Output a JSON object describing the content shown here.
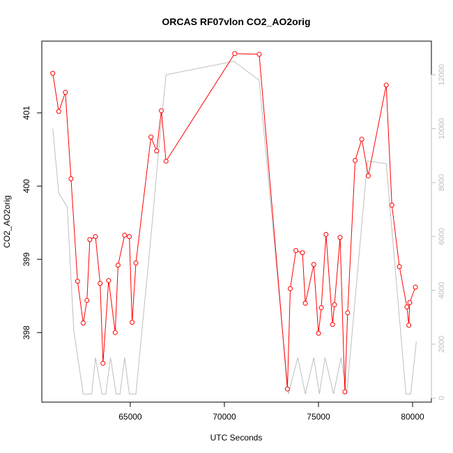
{
  "chart_data": {
    "type": "line",
    "title": "ORCAS RF07vlon CO2_AO2orig",
    "xlabel": "UTC Seconds",
    "ylabel": "CO2_AO2orig",
    "xlim": [
      60300,
      81000
    ],
    "ylim": [
      397.05,
      401.98
    ],
    "y2lim": [
      -150,
      13250
    ],
    "x_ticks": [
      65000,
      70000,
      75000,
      80000
    ],
    "y_ticks": [
      398,
      399,
      400,
      401
    ],
    "y2_ticks": [
      0,
      2000,
      4000,
      6000,
      8000,
      10000,
      12000
    ],
    "grid": false,
    "colors": {
      "primary": "#ff0000",
      "secondary": "#bebebe"
    },
    "series": [
      {
        "role": "primary",
        "axis": "left",
        "marker": "open-circle",
        "x": [
          60880,
          61200,
          61550,
          61850,
          62200,
          62500,
          62700,
          62850,
          63150,
          63400,
          63550,
          63850,
          64200,
          64350,
          64700,
          64950,
          65100,
          65300,
          66100,
          66400,
          66650,
          66900,
          70550,
          71850,
          73350,
          73500,
          73800,
          74150,
          74300,
          74750,
          75000,
          75150,
          75400,
          75750,
          75850,
          76150,
          76400,
          76550,
          76950,
          77300,
          77650,
          78600,
          78900,
          79300,
          79700,
          79800,
          79850,
          80150
        ],
        "y": [
          401.54,
          401.02,
          401.28,
          400.1,
          398.7,
          398.13,
          398.44,
          399.27,
          399.31,
          398.67,
          397.58,
          398.71,
          398.0,
          398.92,
          399.33,
          399.31,
          398.14,
          398.95,
          400.67,
          400.48,
          401.03,
          400.34,
          401.81,
          401.8,
          397.23,
          398.6,
          399.12,
          399.09,
          398.4,
          398.93,
          397.99,
          398.34,
          399.34,
          398.11,
          398.38,
          399.3,
          397.19,
          398.27,
          400.35,
          400.64,
          400.14,
          401.38,
          399.74,
          398.9,
          398.35,
          398.1,
          398.41,
          398.62
        ]
      },
      {
        "role": "secondary",
        "axis": "right",
        "marker": "none",
        "x": [
          60880,
          61200,
          61650,
          62000,
          62500,
          62950,
          63150,
          63500,
          63700,
          63950,
          64250,
          64450,
          64700,
          64950,
          65300,
          66100,
          66550,
          66900,
          70500,
          71850,
          73400,
          73900,
          74300,
          74750,
          75050,
          75350,
          75800,
          76200,
          76500,
          77600,
          78600,
          79650,
          79900,
          80200
        ],
        "y": [
          10000,
          7600,
          7100,
          2500,
          150,
          150,
          1500,
          150,
          150,
          1500,
          150,
          150,
          1500,
          150,
          150,
          6000,
          9500,
          12000,
          12500,
          11800,
          150,
          1500,
          150,
          1500,
          150,
          1500,
          150,
          1500,
          150,
          8800,
          8700,
          150,
          150,
          2100
        ]
      }
    ]
  }
}
